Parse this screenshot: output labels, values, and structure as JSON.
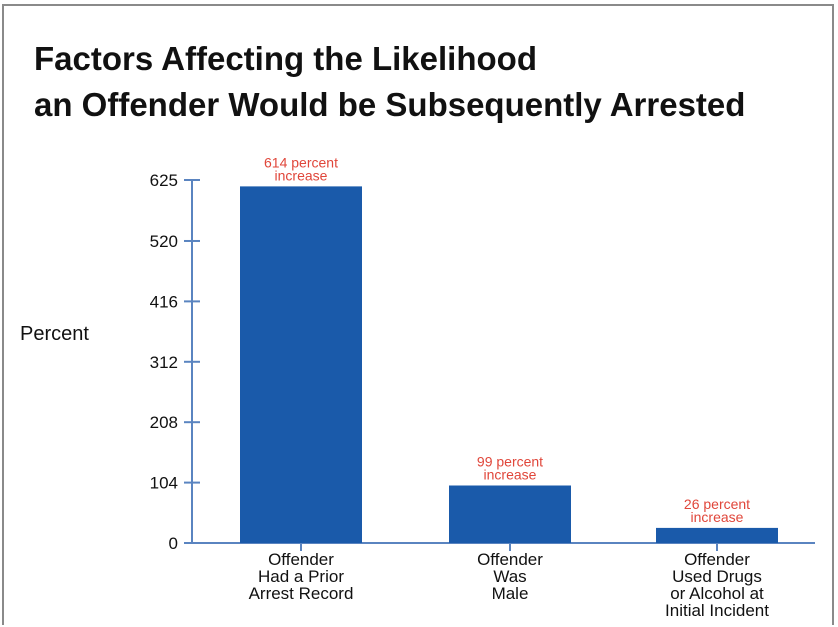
{
  "chart_data": {
    "type": "bar",
    "title_lines": [
      "Factors Affecting the Likelihood",
      "an Offender Would be Subsequently Arrested"
    ],
    "ylabel": "Percent",
    "xlabel": "",
    "ylim": [
      0,
      625
    ],
    "yticks": [
      0,
      104,
      208,
      312,
      416,
      520,
      625
    ],
    "grid": false,
    "categories": [
      [
        "Offender",
        "Had a Prior",
        "Arrest Record"
      ],
      [
        "Offender",
        "Was",
        "Male"
      ],
      [
        "Offender",
        "Used Drugs",
        "or Alcohol at",
        "Initial Incident"
      ]
    ],
    "values": [
      614,
      99,
      26
    ],
    "data_labels": [
      [
        "614 percent",
        "increase"
      ],
      [
        "99 percent",
        "increase"
      ],
      [
        "26 percent",
        "increase"
      ]
    ],
    "colors": {
      "bar": "#1a5aaa",
      "axis": "#5a84c0",
      "data_label": "#e0463a"
    }
  }
}
